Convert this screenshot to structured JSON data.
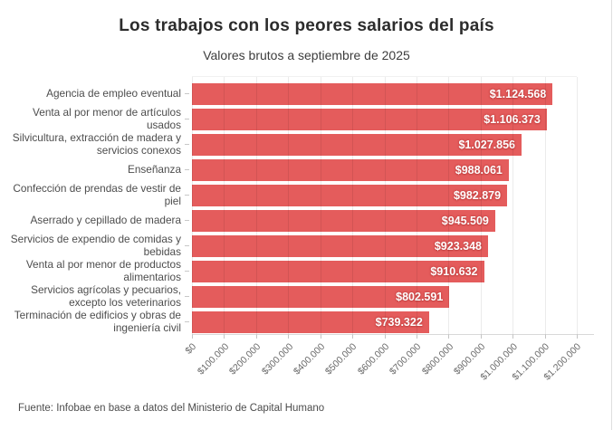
{
  "chart_data": {
    "type": "bar",
    "orientation": "horizontal",
    "title": "Los trabajos con los peores salarios del país",
    "subtitle": "Valores brutos a septiembre de 2025",
    "categories": [
      "Agencia de empleo eventual",
      "Venta al por menor de artículos usados",
      "Silvicultura, extracción de madera y servicios conexos",
      "Enseñanza",
      "Confección de prendas de vestir de piel",
      "Aserrado y cepillado de madera",
      "Servicios de expendio de comidas y bebidas",
      "Venta al por menor de productos alimentarios",
      "Servicios agrícolas y pecuarios, excepto los veterinarios",
      "Terminación de edificios y obras de ingeniería civil"
    ],
    "values": [
      1124568,
      1106373,
      1027856,
      988061,
      982879,
      945509,
      923348,
      910632,
      802591,
      739322
    ],
    "value_labels": [
      "$1.124.568",
      "$1.106.373",
      "$1.027.856",
      "$988.061",
      "$982.879",
      "$945.509",
      "$923.348",
      "$910.632",
      "$802.591",
      "$739.322"
    ],
    "xlim": [
      0,
      1200000
    ],
    "x_tick_values": [
      0,
      100000,
      200000,
      300000,
      400000,
      500000,
      600000,
      700000,
      800000,
      900000,
      1000000,
      1100000,
      1200000
    ],
    "x_tick_labels": [
      "$0",
      "$100.000",
      "$200.000",
      "$300.000",
      "$400.000",
      "$500.000",
      "$600.000",
      "$700.000",
      "$800.000",
      "$900.000",
      "$1.000.000",
      "$1.100.000",
      "$1.200.000"
    ],
    "bar_color": "#e45c5c",
    "grid": "vertical",
    "legend": "none",
    "source": "Fuente: Infobae en base a datos del Ministerio de Capital Humano"
  }
}
